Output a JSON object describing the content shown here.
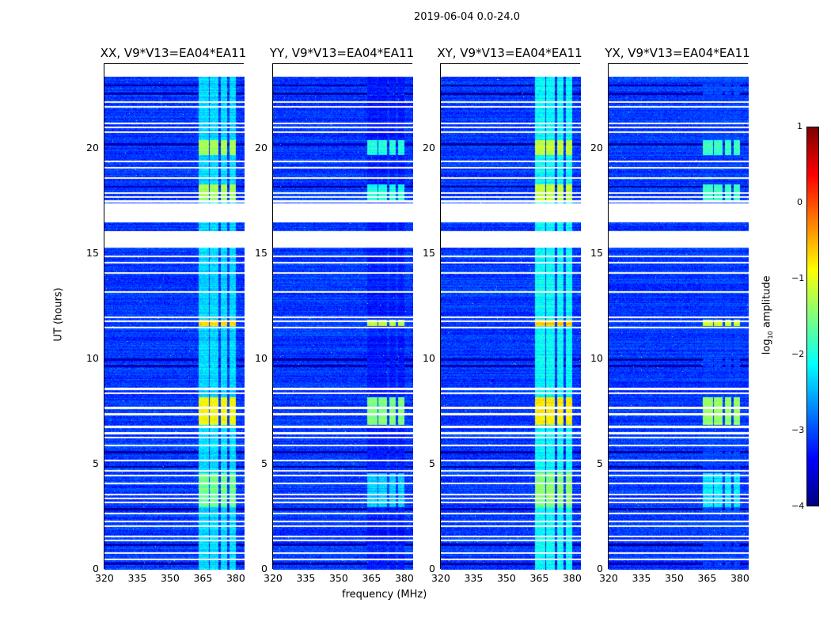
{
  "chart_data": {
    "type": "heatmap",
    "title": "2019-06-04 0.0-24.0",
    "xlabel": "frequency (MHz)",
    "ylabel": "UT (hours)",
    "xlim": [
      320,
      384
    ],
    "ylim": [
      0,
      24
    ],
    "xticks": [
      "320",
      "335",
      "350",
      "365",
      "380"
    ],
    "yticks": [
      "0",
      "5",
      "10",
      "15",
      "20"
    ],
    "panels": [
      {
        "title": "XX, V9*V13=EA04*EA11",
        "band_gain": 1.0
      },
      {
        "title": "YY, V9*V13=EA04*EA11",
        "band_gain": 1.25
      },
      {
        "title": "XY, V9*V13=EA04*EA11",
        "band_gain": 0.95
      },
      {
        "title": "YX, V9*V13=EA04*EA11",
        "band_gain": 1.2
      }
    ],
    "colorbar": {
      "label": "log10 amplitude",
      "range": [
        -4,
        1
      ],
      "ticks": [
        "1",
        "0",
        "−1",
        "−2",
        "−3",
        "−4"
      ],
      "colormap": "jet"
    },
    "background_level": -3.1,
    "bright_bands_mhz": [
      [
        363,
        367.5
      ],
      [
        368,
        372
      ],
      [
        373,
        376
      ],
      [
        377,
        380
      ]
    ],
    "flagged_hours": [
      [
        23.4,
        24
      ],
      [
        16.5,
        17.4
      ],
      [
        15.3,
        16.1
      ]
    ],
    "flag_lines_hours": [
      22.2,
      22.0,
      21.2,
      21.0,
      20.8,
      19.4,
      19.1,
      18.6,
      17.9,
      17.7,
      17.5,
      14.9,
      14.6,
      14.1,
      13.2,
      12.0,
      11.8,
      11.5,
      8.6,
      8.4,
      7.7,
      7.4,
      6.8,
      6.5,
      6.3,
      5.9,
      5.2,
      4.7,
      4.5,
      4.1,
      3.6,
      3.4,
      3.2,
      2.7,
      2.3,
      2.1,
      1.6,
      1.4,
      0.8,
      0.5
    ],
    "dark_lines_hours": [
      23.0,
      22.6,
      20.2,
      18.2,
      10.0,
      9.7,
      5.6,
      4.9,
      2.9,
      1.2,
      0.3
    ],
    "high_amplitude_periods_hours": [
      [
        17.5,
        18.3,
        -1.3
      ],
      [
        19.7,
        20.4,
        -1.3
      ],
      [
        11.6,
        11.9,
        -0.7
      ],
      [
        6.9,
        8.2,
        -0.9
      ],
      [
        3.0,
        4.6,
        -1.6
      ]
    ]
  }
}
